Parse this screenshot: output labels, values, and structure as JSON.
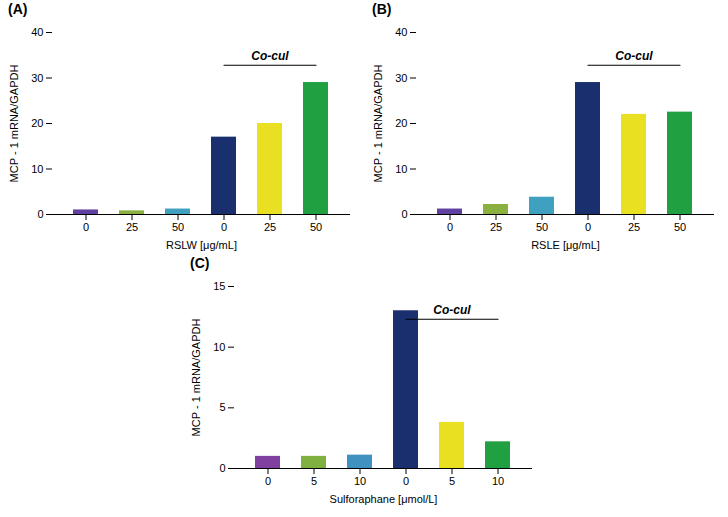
{
  "chart_data": [
    {
      "type": "bar",
      "title": "(A)",
      "categories": [
        "0",
        "25",
        "50",
        "0",
        "25",
        "50"
      ],
      "values": [
        1.0,
        0.8,
        1.2,
        17.0,
        20.0,
        29.0
      ],
      "colors": [
        "#6040a0",
        "#8ab040",
        "#40a0c0",
        "#1a2f6e",
        "#e8e020",
        "#20a040"
      ],
      "xlabel": "RSLW [μg/mL]",
      "ylabel": "MCP - 1 mRNA/GAPDH",
      "ylim": [
        0,
        40
      ],
      "yticks": [
        0,
        10,
        20,
        30,
        40
      ],
      "annotations": [
        {
          "text": "Co-cul",
          "span": [
            3,
            5
          ]
        }
      ]
    },
    {
      "type": "bar",
      "title": "(B)",
      "categories": [
        "0",
        "25",
        "50",
        "0",
        "25",
        "50"
      ],
      "values": [
        1.2,
        2.2,
        3.8,
        29.0,
        22.0,
        22.5
      ],
      "colors": [
        "#6040a0",
        "#8ab040",
        "#40a0c0",
        "#1a2f6e",
        "#e8e020",
        "#20a040"
      ],
      "xlabel": "RSLE [μg/mL]",
      "ylabel": "MCP - 1 mRNA/GAPDH",
      "ylim": [
        0,
        40
      ],
      "yticks": [
        0,
        10,
        20,
        30,
        40
      ],
      "annotations": [
        {
          "text": "Co-cul",
          "span": [
            3,
            5
          ]
        }
      ]
    },
    {
      "type": "bar",
      "title": "(C)",
      "categories": [
        "0",
        "5",
        "10",
        "0",
        "5",
        "10"
      ],
      "values": [
        1.0,
        1.0,
        1.1,
        13.0,
        3.8,
        2.2
      ],
      "colors": [
        "#8040a0",
        "#80b040",
        "#4090c0",
        "#1a2f6e",
        "#e8e020",
        "#20a040"
      ],
      "xlabel": "Sulforaphane [μmol/L]",
      "ylabel": "MCP - 1 mRNA/GAPDH",
      "ylim": [
        0,
        15
      ],
      "yticks": [
        0,
        5,
        10,
        15
      ],
      "annotations": [
        {
          "text": "Co-cul",
          "span": [
            3,
            5
          ]
        }
      ]
    }
  ]
}
